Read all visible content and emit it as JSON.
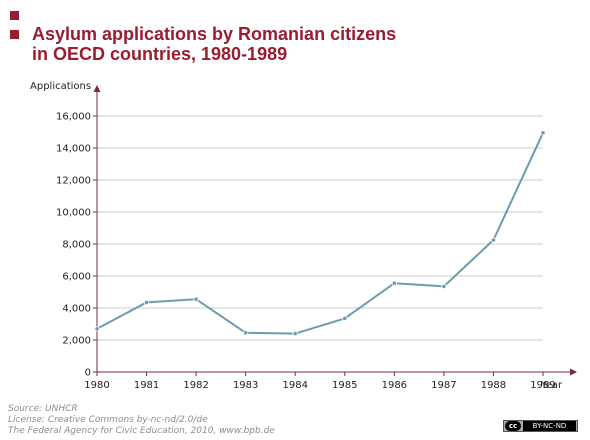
{
  "title_lines": [
    "Asylum applications by Romanian citizens",
    "in OECD countries, 1980-1989"
  ],
  "source_lines": [
    "Source: UNHCR",
    "License: Creative Commons by-nc-nd/2.0/de",
    "The Federal Agency for Civic Education, 2010, www.bpb.de"
  ],
  "license_badge": {
    "symbol": "cc",
    "terms": "BY-NC-ND"
  },
  "colors": {
    "accent": "#9b1b30",
    "line": "#6c9bb0",
    "grid": "#cccccc",
    "axis": "#7a2a3a"
  },
  "chart_data": {
    "type": "line",
    "x": [
      "1980",
      "1981",
      "1982",
      "1983",
      "1984",
      "1985",
      "1986",
      "1987",
      "1988",
      "1989"
    ],
    "series": [
      {
        "values": [
          2700,
          4350,
          4550,
          2450,
          2400,
          3350,
          5550,
          5350,
          8250,
          14950
        ]
      }
    ],
    "xlabel": "Year",
    "ylabel": "Applications",
    "ylim": [
      0,
      16000
    ],
    "yticks": [
      "0",
      "2,000",
      "4,000",
      "6,000",
      "8,000",
      "10,000",
      "12,000",
      "14,000",
      "16,000"
    ],
    "grid": true,
    "legend": false
  }
}
